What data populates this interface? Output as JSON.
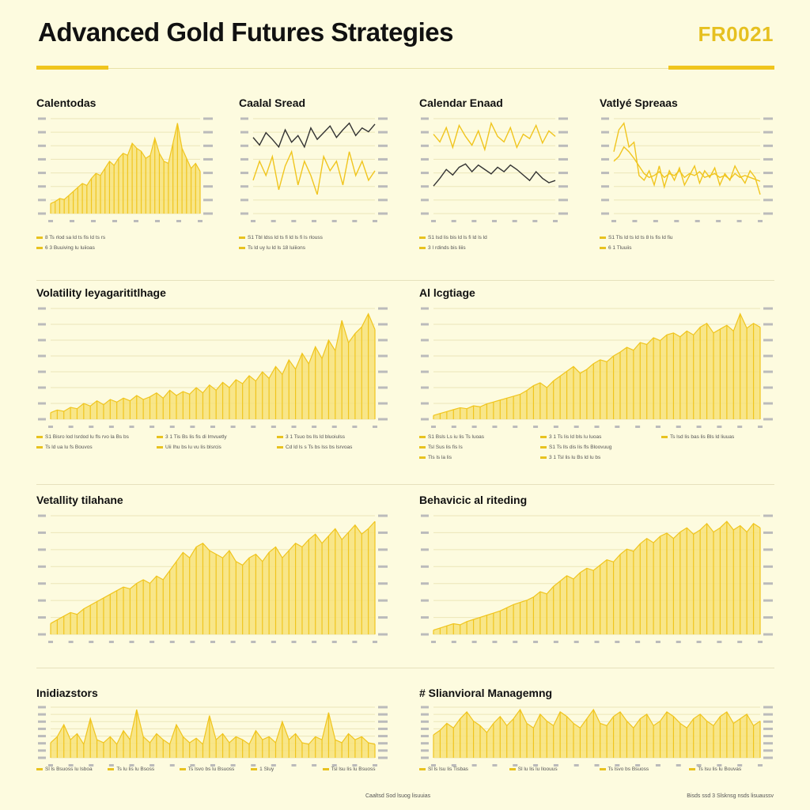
{
  "header": {
    "title": "Advanced Gold Futures Strategies",
    "code": "FR0021"
  },
  "colors": {
    "gold": "#f0c51e",
    "gold_light": "#f7e27a",
    "dark_line": "#333333",
    "grid": "#ece6b8",
    "background": "#fdfbdf"
  },
  "panels": [
    {
      "title": "Calentodas",
      "legend": [
        "8 Ts rlod sa ld ts fis ld ts rs",
        "6 3 Buuiving lu luiioas"
      ]
    },
    {
      "title": "Caalal Sread",
      "legend": [
        "S1 Tbl ldss ld ts fi ld ls fi ls rlouss",
        "Ts ld uy lu ld ls 18 luiiions"
      ]
    },
    {
      "title": "Calendar Enaad",
      "legend": [
        "S1 lsd lis bis ld ls fi ld ls ld",
        "3 I rdinds bis liiis"
      ]
    },
    {
      "title": "Vatlyé Spreaas",
      "legend": [
        "S1 Tls ld ts ld ts 8 ls fis ld fiu",
        "6 1 Tluuiis"
      ]
    },
    {
      "title": "Volatility leyagarititlhage",
      "legend": [
        "S1 Bisro lod Isrdod lu fls rvo la Bs bs",
        "Ts ld ua lu fs Bouvos",
        "3 1 Tis Bs lis fis di Imvuetly",
        "Uii Ihu bs lu vu lis blsrcis",
        "3 1 Tsuo bs lls ld bluoiulss",
        "Cd ld ls s Ts bs lss bs lsrvoas"
      ]
    },
    {
      "title": "Al lcgtiage",
      "legend": [
        "S1 Bsls Ls iu lis Ts luoas",
        "Tsl Sus lis fis ls",
        "Tls ls la lis",
        "3 1 Ts lis ld bls lu luoas",
        "S1 Ts lls dis lis fls Bloovuug",
        "3 1 Tsl lis lu Bs ld lu bs",
        "Ts lsd lis bas lis Bls ld liuuas"
      ]
    },
    {
      "title": "Vetallity tilahane",
      "legend": []
    },
    {
      "title": "Behavicic al riteding",
      "legend": []
    },
    {
      "title": "Inidiazstors",
      "legend": [
        "Sl ls Bsuoss lu lsboa",
        "Ts lu lis lu Bsoss",
        "Ts lsvo bs lu Bsuoss",
        "1 Sluy",
        "Tsl lsu lis lu Bsuoss"
      ]
    },
    {
      "title": "# Slianvioral Managemng",
      "legend": [
        "Sl ls lsu lis Tisbas",
        "Sl lu lis lu lloouus",
        "Ts lsvo bs Bsuoss",
        "Ts lsu lis lu Bouvas"
      ]
    }
  ],
  "footer": {
    "left": "Caaltsd Sod lsuog lisuuias",
    "right": "Bisds ssd 3 Slsknsg nsds lisuaussv"
  },
  "chart_data": [
    {
      "type": "area",
      "series": [
        {
          "values": [
            10,
            12,
            15,
            14,
            18,
            22,
            26,
            30,
            28,
            35,
            40,
            38,
            45,
            52,
            48,
            55,
            60,
            58,
            70,
            65,
            62,
            55,
            58,
            75,
            60,
            52,
            50,
            70,
            90,
            65,
            55,
            45,
            50,
            42
          ]
        }
      ]
    },
    {
      "type": "line",
      "series": [
        {
          "values": [
            80,
            72,
            85,
            78,
            70,
            88,
            75,
            82,
            70,
            90,
            78,
            85,
            92,
            80,
            88,
            95,
            82,
            90,
            86,
            94
          ]
        },
        {
          "values": [
            35,
            55,
            40,
            60,
            25,
            50,
            65,
            30,
            55,
            40,
            20,
            60,
            45,
            55,
            30,
            65,
            40,
            55,
            35,
            45
          ]
        }
      ]
    },
    {
      "type": "line",
      "series": [
        {
          "values": [
            72,
            65,
            78,
            60,
            80,
            70,
            62,
            75,
            58,
            82,
            70,
            65,
            78,
            60,
            72,
            68,
            80,
            64,
            75,
            70
          ]
        },
        {
          "values": [
            25,
            32,
            40,
            35,
            42,
            45,
            38,
            44,
            40,
            36,
            42,
            38,
            44,
            40,
            35,
            30,
            38,
            32,
            28,
            30
          ]
        }
      ]
    },
    {
      "type": "line",
      "series": [
        {
          "values": [
            65,
            88,
            95,
            70,
            75,
            40,
            35,
            45,
            30,
            50,
            28,
            45,
            35,
            48,
            30,
            40,
            50,
            32,
            45,
            38,
            48,
            30,
            42,
            35,
            50,
            40,
            32,
            45,
            38,
            20
          ]
        },
        {
          "values": [
            55,
            60,
            70,
            65,
            58,
            50,
            42,
            38,
            40,
            44,
            38,
            42,
            40,
            45,
            38,
            42,
            40,
            44,
            38,
            40,
            42,
            38,
            40,
            36,
            42,
            38,
            40,
            38,
            36,
            34
          ]
        }
      ]
    },
    {
      "type": "area",
      "series": [
        {
          "values": [
            5,
            7,
            6,
            9,
            8,
            12,
            10,
            14,
            11,
            15,
            13,
            16,
            14,
            18,
            15,
            17,
            20,
            16,
            22,
            18,
            21,
            19,
            24,
            20,
            26,
            22,
            28,
            24,
            30,
            27,
            33,
            29,
            36,
            31,
            40,
            34,
            45,
            38,
            50,
            42,
            55,
            46,
            60,
            52,
            75,
            58,
            65,
            70,
            80,
            68
          ]
        }
      ]
    },
    {
      "type": "area",
      "series": [
        {
          "values": [
            4,
            6,
            8,
            10,
            12,
            11,
            14,
            13,
            16,
            18,
            20,
            22,
            24,
            26,
            30,
            35,
            38,
            33,
            40,
            45,
            50,
            55,
            48,
            52,
            58,
            62,
            60,
            66,
            70,
            75,
            72,
            80,
            78,
            85,
            82,
            88,
            90,
            86,
            92,
            88,
            96,
            100,
            90,
            94,
            98,
            92,
            110,
            95,
            100,
            96
          ]
        }
      ]
    },
    {
      "type": "area",
      "series": [
        {
          "values": [
            6,
            8,
            10,
            12,
            11,
            14,
            16,
            18,
            20,
            22,
            24,
            26,
            25,
            28,
            30,
            28,
            32,
            30,
            35,
            40,
            45,
            42,
            48,
            50,
            46,
            44,
            42,
            46,
            40,
            38,
            42,
            44,
            40,
            45,
            48,
            42,
            46,
            50,
            48,
            52,
            55,
            50,
            54,
            58,
            52,
            56,
            60,
            55,
            58,
            62
          ]
        }
      ]
    },
    {
      "type": "area",
      "series": [
        {
          "values": [
            4,
            6,
            8,
            10,
            9,
            12,
            14,
            16,
            18,
            20,
            22,
            25,
            28,
            30,
            32,
            35,
            40,
            38,
            45,
            50,
            55,
            52,
            58,
            62,
            60,
            65,
            70,
            68,
            75,
            80,
            78,
            85,
            90,
            86,
            92,
            95,
            90,
            96,
            100,
            94,
            98,
            104,
            96,
            100,
            106,
            98,
            102,
            96,
            104,
            100
          ]
        }
      ]
    },
    {
      "type": "area",
      "series": [
        {
          "values": [
            10,
            14,
            22,
            12,
            16,
            9,
            26,
            12,
            10,
            14,
            9,
            18,
            12,
            32,
            14,
            10,
            16,
            12,
            9,
            22,
            14,
            10,
            13,
            9,
            28,
            12,
            16,
            10,
            14,
            12,
            9,
            18,
            12,
            14,
            10,
            24,
            12,
            16,
            10,
            9,
            14,
            12,
            30,
            12,
            10,
            16,
            12,
            14,
            10,
            9
          ]
        }
      ]
    },
    {
      "type": "area",
      "series": [
        {
          "values": [
            20,
            24,
            30,
            26,
            34,
            40,
            32,
            28,
            22,
            30,
            36,
            28,
            34,
            42,
            30,
            26,
            38,
            32,
            28,
            40,
            36,
            30,
            26,
            34,
            42,
            30,
            28,
            36,
            40,
            32,
            26,
            34,
            38,
            28,
            32,
            40,
            36,
            30,
            26,
            34,
            38,
            32,
            28,
            36,
            40,
            30,
            34,
            38,
            28,
            32
          ]
        }
      ]
    }
  ]
}
